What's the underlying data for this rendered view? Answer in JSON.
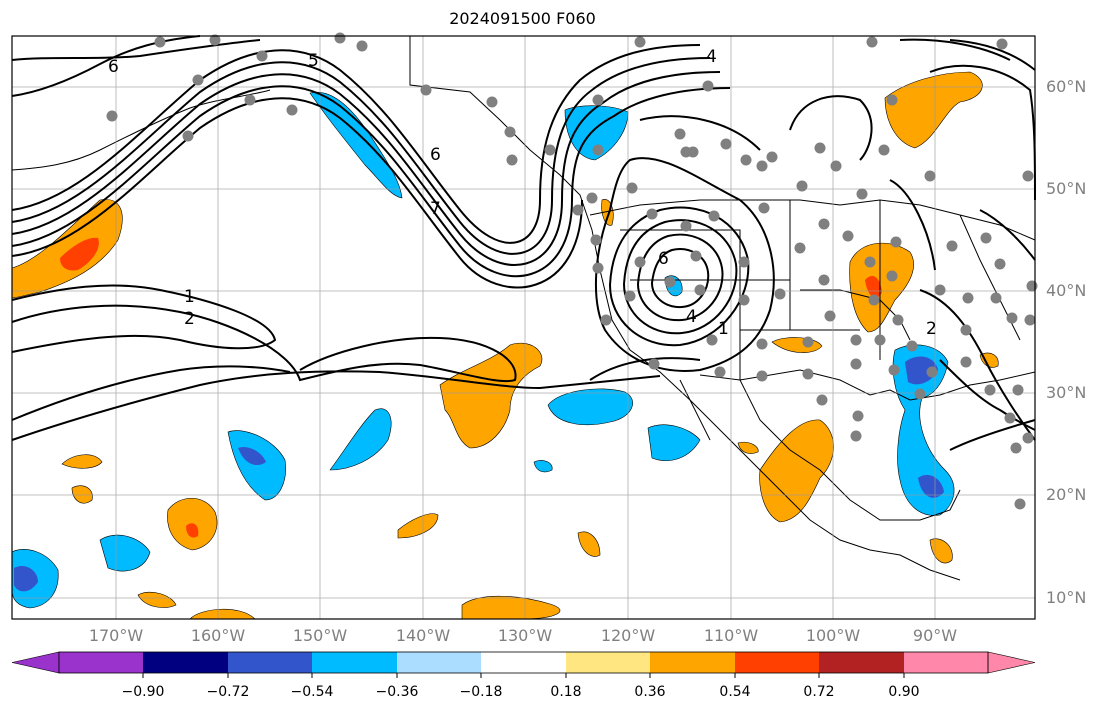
{
  "title": "2024091500 F060",
  "lat_labels": [
    "60°N",
    "50°N",
    "40°N",
    "30°N",
    "20°N",
    "10°N"
  ],
  "lon_labels": [
    "170°W",
    "160°W",
    "150°W",
    "140°W",
    "130°W",
    "120°W",
    "110°W",
    "100°W",
    "90°W"
  ],
  "contour_labels": [
    "6",
    "5",
    "4",
    "6",
    "7",
    "1",
    "2",
    "6",
    "4",
    "1",
    "2"
  ],
  "colorbar": {
    "ticks": [
      "−0.90",
      "−0.72",
      "−0.54",
      "−0.36",
      "−0.18",
      "0.18",
      "0.36",
      "0.54",
      "0.72",
      "0.90"
    ],
    "colors": [
      "#9933cc",
      "#000080",
      "#3355cc",
      "#00bbff",
      "#aaddff",
      "#ffffff",
      "#ffe680",
      "#ffa500",
      "#ff4000",
      "#b22222",
      "#ff88aa"
    ]
  },
  "colors": {
    "land_outline": "#000000",
    "contour": "#000000",
    "station_dot": "#808080",
    "grid": "#999999",
    "axis_label": "#808080"
  }
}
